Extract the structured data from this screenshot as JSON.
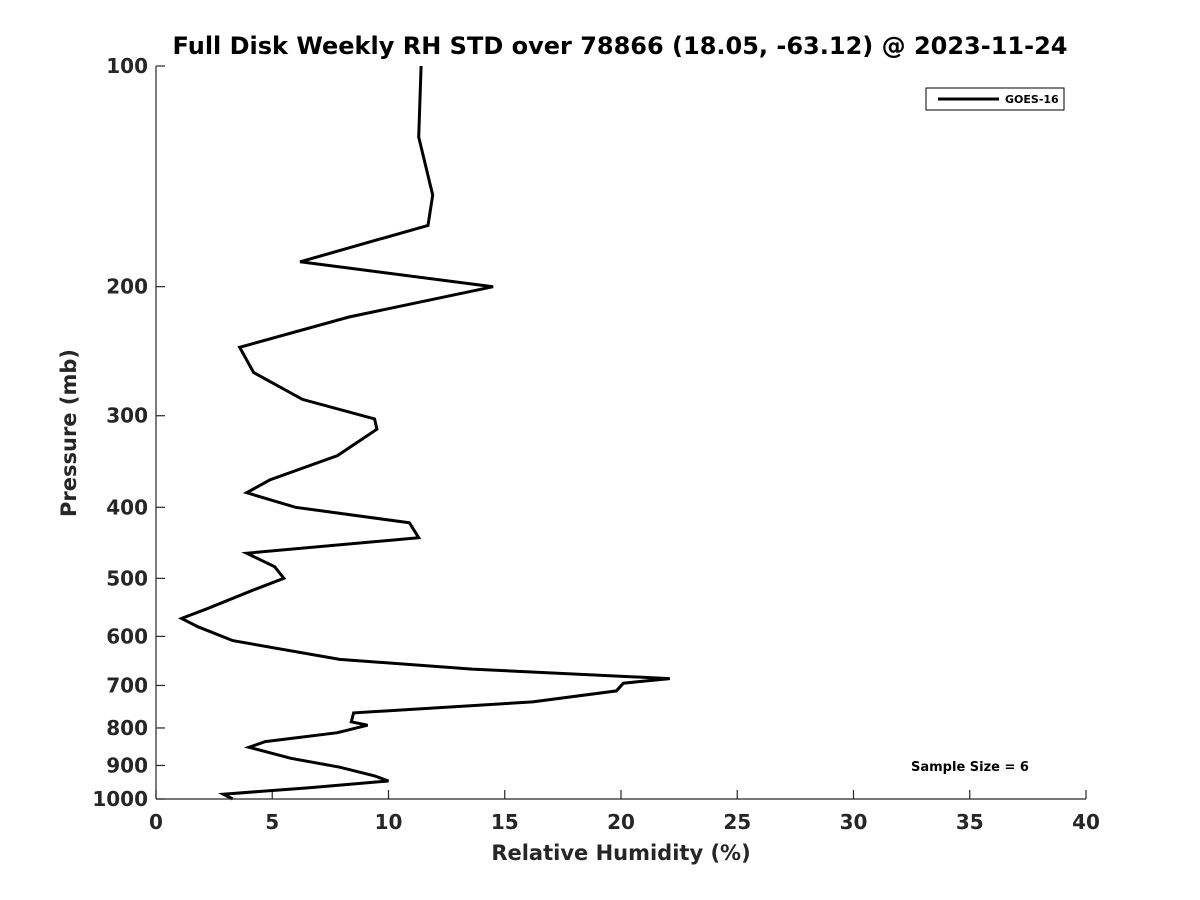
{
  "chart_data": {
    "type": "line",
    "title": "Full Disk Weekly RH STD over 78866 (18.05, -63.12) @ 2023-11-24",
    "xlabel": "Relative Humidity (%)",
    "ylabel": "Pressure (mb)",
    "xlim": [
      0,
      40
    ],
    "ylim": [
      100,
      1000
    ],
    "yscale": "log",
    "y_reversed": true,
    "grid": false,
    "x_ticks": [
      0,
      5,
      10,
      15,
      20,
      25,
      30,
      35,
      40
    ],
    "y_ticks": [
      100,
      200,
      300,
      400,
      500,
      600,
      700,
      800,
      900,
      1000
    ],
    "legend": {
      "placement": "top-right",
      "entries": [
        "GOES-16"
      ]
    },
    "annotation": "Sample Size = 6",
    "line_color": "#000000",
    "series": [
      {
        "name": "GOES-16",
        "points": [
          {
            "x": 11.4,
            "y": 100
          },
          {
            "x": 11.3,
            "y": 125
          },
          {
            "x": 11.9,
            "y": 150
          },
          {
            "x": 11.7,
            "y": 165
          },
          {
            "x": 6.2,
            "y": 185
          },
          {
            "x": 14.5,
            "y": 200
          },
          {
            "x": 8.3,
            "y": 220
          },
          {
            "x": 3.6,
            "y": 242
          },
          {
            "x": 4.2,
            "y": 262
          },
          {
            "x": 6.3,
            "y": 285
          },
          {
            "x": 9.4,
            "y": 303
          },
          {
            "x": 9.5,
            "y": 313
          },
          {
            "x": 7.8,
            "y": 340
          },
          {
            "x": 4.9,
            "y": 367
          },
          {
            "x": 3.9,
            "y": 382
          },
          {
            "x": 6.0,
            "y": 400
          },
          {
            "x": 10.9,
            "y": 420
          },
          {
            "x": 11.3,
            "y": 440
          },
          {
            "x": 3.9,
            "y": 462
          },
          {
            "x": 5.1,
            "y": 482
          },
          {
            "x": 5.5,
            "y": 500
          },
          {
            "x": 4.1,
            "y": 520
          },
          {
            "x": 2.2,
            "y": 550
          },
          {
            "x": 1.1,
            "y": 567
          },
          {
            "x": 1.8,
            "y": 582
          },
          {
            "x": 3.3,
            "y": 608
          },
          {
            "x": 7.9,
            "y": 645
          },
          {
            "x": 13.6,
            "y": 665
          },
          {
            "x": 22.1,
            "y": 685
          },
          {
            "x": 20.1,
            "y": 695
          },
          {
            "x": 19.8,
            "y": 712
          },
          {
            "x": 16.2,
            "y": 737
          },
          {
            "x": 8.5,
            "y": 763
          },
          {
            "x": 8.4,
            "y": 785
          },
          {
            "x": 9.1,
            "y": 793
          },
          {
            "x": 7.8,
            "y": 812
          },
          {
            "x": 4.7,
            "y": 835
          },
          {
            "x": 4.0,
            "y": 850
          },
          {
            "x": 5.8,
            "y": 880
          },
          {
            "x": 7.9,
            "y": 905
          },
          {
            "x": 9.4,
            "y": 930
          },
          {
            "x": 10.0,
            "y": 945
          },
          {
            "x": 6.6,
            "y": 965
          },
          {
            "x": 2.9,
            "y": 985
          },
          {
            "x": 3.3,
            "y": 1000
          }
        ]
      }
    ]
  }
}
